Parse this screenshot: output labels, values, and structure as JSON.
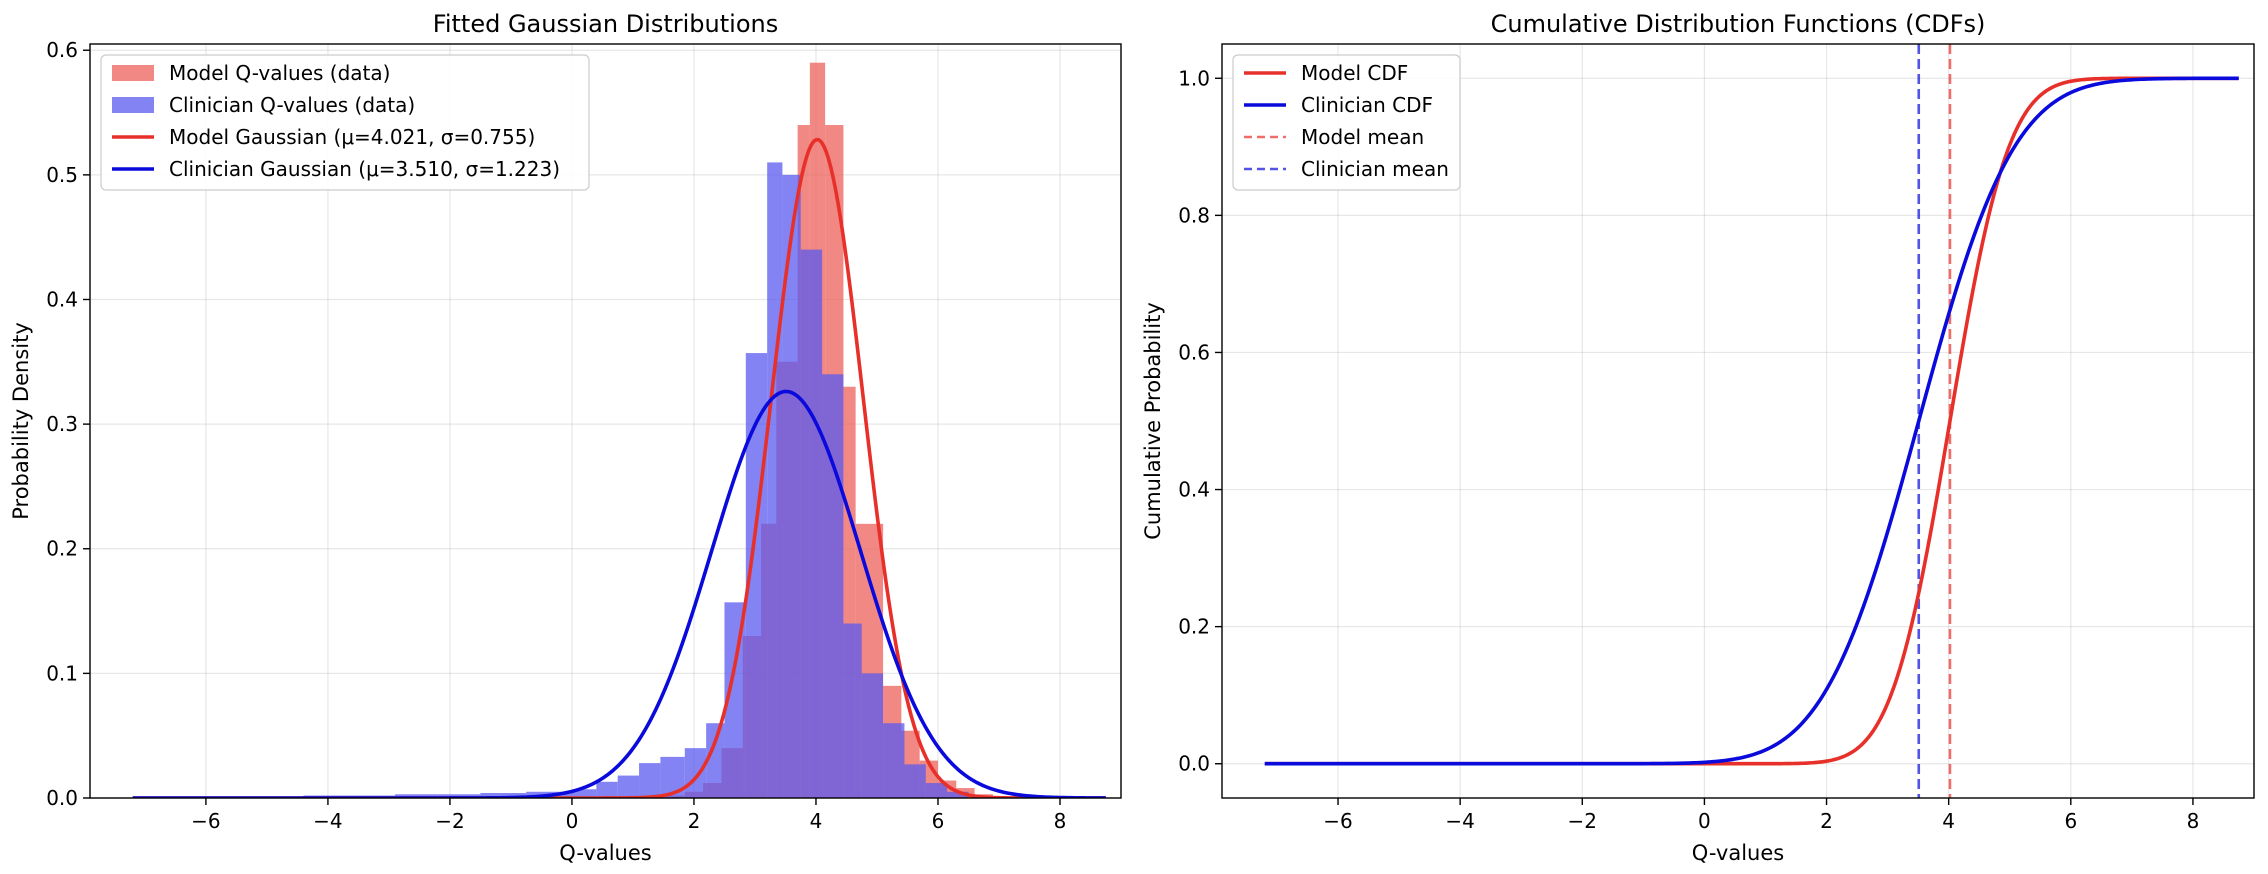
{
  "figure_title_fragment": "· · ·",
  "colors": {
    "model": "#e8302a",
    "clinician": "#0a0adc",
    "model_hist": "#ee6a64",
    "clinician_hist": "#5a5af0"
  },
  "chart_data": [
    {
      "type": "histogram+line",
      "title": "Fitted Gaussian Distributions",
      "xlabel": "Q-values",
      "ylabel": "Probability Density",
      "xlim": [
        -7.9,
        9.0
      ],
      "ylim": [
        0.0,
        0.605
      ],
      "xticks": [
        -6,
        -4,
        -2,
        0,
        2,
        4,
        6,
        8
      ],
      "xtick_labels": [
        "−6",
        "−4",
        "−2",
        "0",
        "2",
        "4",
        "6",
        "8"
      ],
      "yticks": [
        0.0,
        0.1,
        0.2,
        0.3,
        0.4,
        0.5,
        0.6
      ],
      "ytick_labels": [
        "0.0",
        "0.1",
        "0.2",
        "0.3",
        "0.4",
        "0.5",
        "0.6"
      ],
      "grid": true,
      "legend_position": "top-left",
      "legend": [
        "Model Q-values (data)",
        "Clinician Q-values (data)",
        "Model Gaussian (μ=4.021, σ=0.755)",
        "Clinician Gaussian (μ=3.510, σ=1.223)"
      ],
      "histograms": [
        {
          "name": "Model Q-values (data)",
          "alpha": 0.8,
          "bins": [
            {
              "x0": 1.55,
              "x1": 1.85,
              "value": 0.002
            },
            {
              "x0": 1.85,
              "x1": 2.15,
              "value": 0.005
            },
            {
              "x0": 2.15,
              "x1": 2.45,
              "value": 0.012
            },
            {
              "x0": 2.45,
              "x1": 2.8,
              "value": 0.04
            },
            {
              "x0": 2.8,
              "x1": 3.1,
              "value": 0.13
            },
            {
              "x0": 3.1,
              "x1": 3.35,
              "value": 0.22
            },
            {
              "x0": 3.35,
              "x1": 3.7,
              "value": 0.35
            },
            {
              "x0": 3.7,
              "x1": 3.9,
              "value": 0.54
            },
            {
              "x0": 3.9,
              "x1": 4.15,
              "value": 0.59
            },
            {
              "x0": 4.15,
              "x1": 4.45,
              "value": 0.54
            },
            {
              "x0": 4.45,
              "x1": 4.65,
              "value": 0.33
            },
            {
              "x0": 4.65,
              "x1": 5.1,
              "value": 0.22
            },
            {
              "x0": 5.1,
              "x1": 5.4,
              "value": 0.09
            },
            {
              "x0": 5.4,
              "x1": 5.7,
              "value": 0.054
            },
            {
              "x0": 5.7,
              "x1": 6.0,
              "value": 0.03
            },
            {
              "x0": 6.0,
              "x1": 6.3,
              "value": 0.014
            },
            {
              "x0": 6.3,
              "x1": 6.6,
              "value": 0.008
            },
            {
              "x0": 6.6,
              "x1": 6.9,
              "value": 0.003
            }
          ]
        },
        {
          "name": "Clinician Q-values (data)",
          "alpha": 0.75,
          "bins": [
            {
              "x0": -4.4,
              "x1": -3.7,
              "value": 0.002
            },
            {
              "x0": -3.7,
              "x1": -2.9,
              "value": 0.002
            },
            {
              "x0": -2.9,
              "x1": -2.2,
              "value": 0.003
            },
            {
              "x0": -2.2,
              "x1": -1.5,
              "value": 0.003
            },
            {
              "x0": -1.5,
              "x1": -0.75,
              "value": 0.004
            },
            {
              "x0": -0.75,
              "x1": 0.05,
              "value": 0.005
            },
            {
              "x0": 0.05,
              "x1": 0.4,
              "value": 0.007
            },
            {
              "x0": 0.4,
              "x1": 0.75,
              "value": 0.013
            },
            {
              "x0": 0.75,
              "x1": 1.1,
              "value": 0.018
            },
            {
              "x0": 1.1,
              "x1": 1.45,
              "value": 0.028
            },
            {
              "x0": 1.45,
              "x1": 1.85,
              "value": 0.033
            },
            {
              "x0": 1.85,
              "x1": 2.2,
              "value": 0.04
            },
            {
              "x0": 2.2,
              "x1": 2.5,
              "value": 0.06
            },
            {
              "x0": 2.5,
              "x1": 2.85,
              "value": 0.157
            },
            {
              "x0": 2.85,
              "x1": 3.2,
              "value": 0.357
            },
            {
              "x0": 3.2,
              "x1": 3.45,
              "value": 0.51
            },
            {
              "x0": 3.45,
              "x1": 3.75,
              "value": 0.5
            },
            {
              "x0": 3.75,
              "x1": 4.1,
              "value": 0.44
            },
            {
              "x0": 4.1,
              "x1": 4.45,
              "value": 0.34
            },
            {
              "x0": 4.45,
              "x1": 4.75,
              "value": 0.14
            },
            {
              "x0": 4.75,
              "x1": 5.1,
              "value": 0.1
            },
            {
              "x0": 5.1,
              "x1": 5.45,
              "value": 0.06
            },
            {
              "x0": 5.45,
              "x1": 5.8,
              "value": 0.027
            },
            {
              "x0": 5.8,
              "x1": 6.15,
              "value": 0.012
            },
            {
              "x0": 6.15,
              "x1": 6.5,
              "value": 0.005
            }
          ]
        }
      ],
      "series": [
        {
          "name": "Model Gaussian (μ=4.021, σ=0.755)",
          "kind": "gaussian_pdf",
          "mu": 4.021,
          "sigma": 0.755,
          "x_range": [
            -7.2,
            8.75
          ]
        },
        {
          "name": "Clinician Gaussian (μ=3.510, σ=1.223)",
          "kind": "gaussian_pdf",
          "mu": 3.51,
          "sigma": 1.223,
          "x_range": [
            -7.2,
            8.75
          ]
        }
      ]
    },
    {
      "type": "line",
      "title": "Cumulative Distribution Functions (CDFs)",
      "xlabel": "Q-values",
      "ylabel": "Cumulative Probability",
      "xlim": [
        -7.9,
        9.0
      ],
      "ylim": [
        -0.05,
        1.05
      ],
      "xticks": [
        -6,
        -4,
        -2,
        0,
        2,
        4,
        6,
        8
      ],
      "xtick_labels": [
        "−6",
        "−4",
        "−2",
        "0",
        "2",
        "4",
        "6",
        "8"
      ],
      "yticks": [
        0.0,
        0.2,
        0.4,
        0.6,
        0.8,
        1.0
      ],
      "ytick_labels": [
        "0.0",
        "0.2",
        "0.4",
        "0.6",
        "0.8",
        "1.0"
      ],
      "grid": true,
      "legend_position": "top-left",
      "legend": [
        "Model CDF",
        "Clinician CDF",
        "Model mean",
        "Clinician mean"
      ],
      "series": [
        {
          "name": "Model CDF",
          "kind": "gaussian_cdf",
          "mu": 4.021,
          "sigma": 0.755,
          "x_range": [
            -7.2,
            8.75
          ]
        },
        {
          "name": "Clinician CDF",
          "kind": "gaussian_cdf",
          "mu": 3.51,
          "sigma": 1.223,
          "x_range": [
            -7.2,
            8.75
          ]
        }
      ],
      "vlines": [
        {
          "name": "Model mean",
          "x": 4.021
        },
        {
          "name": "Clinician mean",
          "x": 3.51
        }
      ]
    }
  ]
}
